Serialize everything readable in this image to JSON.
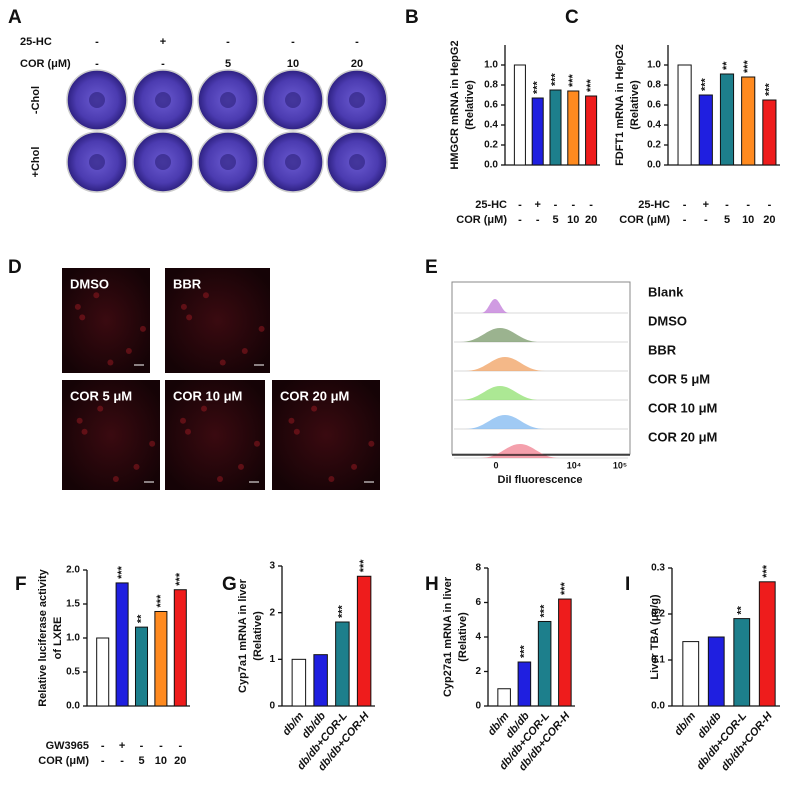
{
  "panel_letters": [
    "A",
    "B",
    "C",
    "D",
    "E",
    "F",
    "G",
    "H",
    "I"
  ],
  "plates": {
    "rows": [
      {
        "name": "25-HC",
        "values": [
          "-",
          "+",
          "-",
          "-",
          "-"
        ]
      },
      {
        "name": "COR (μM)",
        "values": [
          "-",
          "-",
          "5",
          "10",
          "20"
        ]
      }
    ],
    "side_labels": [
      "-Chol",
      "+Chol"
    ]
  },
  "micrographs": {
    "labels": [
      "DMSO",
      "BBR",
      "COR 5 μM",
      "COR 10 μM",
      "COR 20 μM"
    ]
  },
  "flow": {
    "labels": [
      "Blank",
      "DMSO",
      "BBR",
      "COR 5 μM",
      "COR 10 μM",
      "COR 20 μM"
    ],
    "xticks": [
      "0",
      "10⁴",
      "10⁵"
    ],
    "xlabel": "DiI fluorescence"
  },
  "chart_data": [
    {
      "type": "bar",
      "ylabel": [
        "HMGCR mRNA in HepG2",
        "(Relative)"
      ],
      "values": [
        1.0,
        0.67,
        0.75,
        0.74,
        0.69
      ],
      "colors": [
        "#ffffff",
        "#1f1fe0",
        "#1d7f8c",
        "#ff8a1f",
        "#ee1c1c"
      ],
      "annotations": [
        null,
        "***",
        "***",
        "***",
        "***"
      ],
      "ylim": [
        0,
        1.2
      ],
      "yticks": [
        {
          "value": 0,
          "label": "0.0"
        },
        0.2,
        0.4,
        0.6,
        0.8,
        {
          "value": 1,
          "label": "1.0"
        }
      ],
      "rows": [
        {
          "name": "25-HC",
          "values": [
            "-",
            "+",
            "-",
            "-",
            "-"
          ]
        },
        {
          "name": "COR (μM)",
          "values": [
            "-",
            "-",
            "5",
            "10",
            "20"
          ]
        }
      ]
    },
    {
      "type": "bar",
      "ylabel": [
        "FDFT1 mRNA in HepG2",
        "(Relative)"
      ],
      "values": [
        1.0,
        0.7,
        0.91,
        0.88,
        0.65
      ],
      "colors": [
        "#ffffff",
        "#1f1fe0",
        "#1d7f8c",
        "#ff8a1f",
        "#ee1c1c"
      ],
      "annotations": [
        null,
        "***",
        "**",
        "***",
        "***"
      ],
      "ylim": [
        0,
        1.2
      ],
      "yticks": [
        {
          "value": 0,
          "label": "0.0"
        },
        0.2,
        0.4,
        0.6,
        0.8,
        {
          "value": 1,
          "label": "1.0"
        }
      ],
      "rows": [
        {
          "name": "25-HC",
          "values": [
            "-",
            "+",
            "-",
            "-",
            "-"
          ]
        },
        {
          "name": "COR (μM)",
          "values": [
            "-",
            "-",
            "5",
            "10",
            "20"
          ]
        }
      ]
    },
    {
      "type": "bar",
      "ylabel": [
        "Relative luciferase activity",
        "of LXRE"
      ],
      "values": [
        1.0,
        1.81,
        1.16,
        1.39,
        1.71
      ],
      "colors": [
        "#ffffff",
        "#1f1fe0",
        "#1d7f8c",
        "#ff8a1f",
        "#ee1c1c"
      ],
      "annotations": [
        null,
        "***",
        "**",
        "***",
        "***"
      ],
      "ylim": [
        0,
        2
      ],
      "yticks": [
        {
          "value": 0,
          "label": "0.0"
        },
        0.5,
        {
          "value": 1,
          "label": "1.0"
        },
        1.5,
        {
          "value": 2,
          "label": "2.0"
        }
      ],
      "rows": [
        {
          "name": "GW3965",
          "values": [
            "-",
            "+",
            "-",
            "-",
            "-"
          ]
        },
        {
          "name": "COR (μM)",
          "values": [
            "-",
            "-",
            "5",
            "10",
            "20"
          ]
        }
      ]
    },
    {
      "type": "bar",
      "ylabel": [
        "Cyp7a1 mRNA in liver",
        "(Relative)"
      ],
      "categories": [
        "db/m",
        "db/db",
        "db/db+COR-L",
        "db/db+COR-H"
      ],
      "values": [
        1.0,
        1.1,
        1.8,
        2.78
      ],
      "colors": [
        "#ffffff",
        "#1f1fe0",
        "#1d7f8c",
        "#ee1c1c"
      ],
      "annotations": [
        null,
        null,
        "***",
        "***"
      ],
      "ylim": [
        0,
        3
      ],
      "yticks": [
        0,
        1,
        2,
        3
      ]
    },
    {
      "type": "bar",
      "ylabel": [
        "Cyp27a1 mRNA in liver",
        "(Relative)"
      ],
      "categories": [
        "db/m",
        "db/db",
        "db/db+COR-L",
        "db/db+COR-H"
      ],
      "values": [
        1.0,
        2.55,
        4.9,
        6.2
      ],
      "colors": [
        "#ffffff",
        "#1f1fe0",
        "#1d7f8c",
        "#ee1c1c"
      ],
      "annotations": [
        null,
        "***",
        "***",
        "***"
      ],
      "ylim": [
        0,
        8
      ],
      "yticks": [
        0,
        2,
        4,
        6,
        8
      ]
    },
    {
      "type": "bar",
      "ylabel": [
        "Liver TBA  (μg/g)"
      ],
      "categories": [
        "db/m",
        "db/db",
        "db/db+COR-L",
        "db/db+COR-H"
      ],
      "values": [
        0.14,
        0.15,
        0.19,
        0.27
      ],
      "colors": [
        "#ffffff",
        "#1f1fe0",
        "#1d7f8c",
        "#ee1c1c"
      ],
      "annotations": [
        null,
        null,
        "**",
        "***"
      ],
      "ylim": [
        0,
        0.3
      ],
      "yticks": [
        {
          "value": 0,
          "label": "0.0"
        },
        0.1,
        0.2,
        0.3
      ]
    }
  ]
}
